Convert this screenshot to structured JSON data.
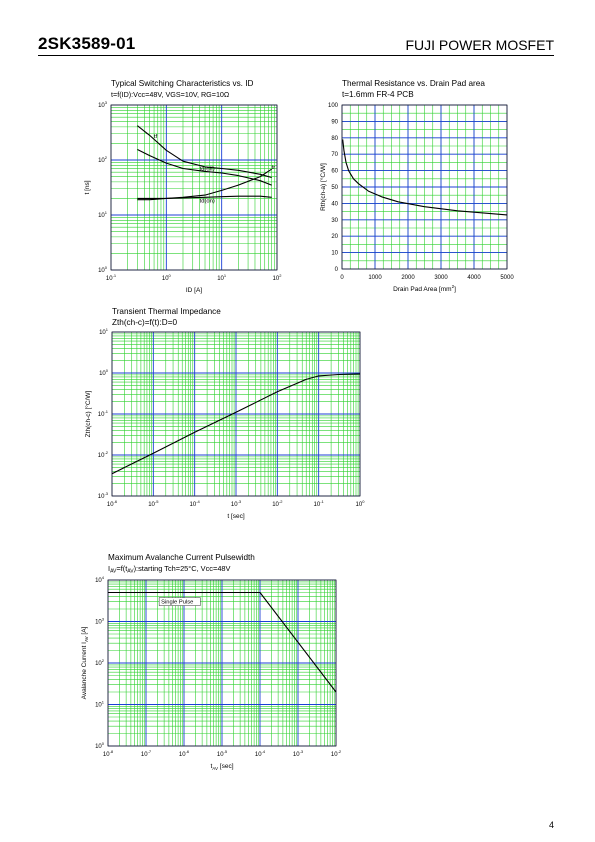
{
  "header": {
    "part_number": "2SK3589-01",
    "maker": "FUJI POWER MOSFET"
  },
  "page_number": "4",
  "colors": {
    "grid_major": "#1c3fd6",
    "grid_minor": "#2fd12f",
    "curve": "#000000"
  },
  "chart_data": [
    {
      "id": "switching",
      "type": "line",
      "title": "Typical Switching Characteristics vs. ID",
      "subtitle": "t=f(ID):Vcc=48V, VGS=10V, RG=10Ω",
      "xlabel": "ID [A]",
      "ylabel": "t [ns]",
      "xscale": "log",
      "yscale": "log",
      "xlim": [
        0.1,
        100
      ],
      "ylim": [
        1,
        1000
      ],
      "x_ticks": [
        {
          "v": 0.1,
          "b": "10",
          "e": "-1"
        },
        {
          "v": 1,
          "b": "10",
          "e": "0"
        },
        {
          "v": 10,
          "b": "10",
          "e": "1"
        },
        {
          "v": 100,
          "b": "10",
          "e": "2"
        }
      ],
      "y_ticks": [
        {
          "v": 1,
          "b": "10",
          "e": "0"
        },
        {
          "v": 10,
          "b": "10",
          "e": "1"
        },
        {
          "v": 100,
          "b": "10",
          "e": "2"
        },
        {
          "v": 1000,
          "b": "10",
          "e": "3"
        }
      ],
      "series": [
        {
          "name": "tf",
          "x": [
            0.3,
            0.5,
            1,
            2,
            5,
            10,
            20,
            50,
            80
          ],
          "y": [
            420,
            280,
            150,
            95,
            75,
            70,
            65,
            55,
            48
          ]
        },
        {
          "name": "td(off)",
          "x": [
            0.3,
            0.5,
            1,
            2,
            5,
            10,
            20,
            50,
            80
          ],
          "y": [
            155,
            120,
            88,
            70,
            62,
            58,
            52,
            42,
            35
          ]
        },
        {
          "name": "tr",
          "x": [
            0.3,
            0.5,
            1,
            2,
            5,
            10,
            20,
            50,
            80
          ],
          "y": [
            19,
            19,
            20,
            21,
            23,
            28,
            35,
            50,
            68
          ]
        },
        {
          "name": "td(on)",
          "x": [
            0.3,
            0.5,
            1,
            2,
            5,
            10,
            20,
            50,
            80
          ],
          "y": [
            20,
            20,
            20,
            20.5,
            21,
            21.5,
            22,
            22,
            21
          ]
        }
      ],
      "labels": [
        {
          "text": "tf",
          "x": 0.6,
          "y": 250
        },
        {
          "text": "td(off)",
          "x": 4,
          "y": 65
        },
        {
          "text": "tr",
          "x": 80,
          "y": 68
        },
        {
          "text": "td(on)",
          "x": 4,
          "y": 17
        }
      ]
    },
    {
      "id": "thermal_pad",
      "type": "line",
      "title": "Thermal Resistance vs. Drain Pad area",
      "subtitle": "t=1.6mm FR-4 PCB",
      "xlabel": "Drain Pad Area [mm",
      "xlabel_sup": "2",
      "xlabel_end": "]",
      "ylabel": "Rth(ch-a) [°C/W]",
      "xscale": "linear",
      "yscale": "linear",
      "xlim": [
        0,
        5000
      ],
      "ylim": [
        0,
        100
      ],
      "x_ticks": [
        {
          "v": 0,
          "b": "0"
        },
        {
          "v": 1000,
          "b": "1000"
        },
        {
          "v": 2000,
          "b": "2000"
        },
        {
          "v": 3000,
          "b": "3000"
        },
        {
          "v": 4000,
          "b": "4000"
        },
        {
          "v": 5000,
          "b": "5000"
        }
      ],
      "y_ticks": [
        {
          "v": 0,
          "b": "0"
        },
        {
          "v": 10,
          "b": "10"
        },
        {
          "v": 20,
          "b": "20"
        },
        {
          "v": 30,
          "b": "30"
        },
        {
          "v": 40,
          "b": "40"
        },
        {
          "v": 50,
          "b": "50"
        },
        {
          "v": 60,
          "b": "60"
        },
        {
          "v": 70,
          "b": "70"
        },
        {
          "v": 80,
          "b": "80"
        },
        {
          "v": 90,
          "b": "90"
        },
        {
          "v": 100,
          "b": "100"
        }
      ],
      "series": [
        {
          "name": "",
          "x": [
            20,
            60,
            120,
            200,
            350,
            500,
            800,
            1200,
            1700,
            2500,
            3500,
            5000
          ],
          "y": [
            79,
            72,
            65,
            60,
            55,
            52,
            47.5,
            44,
            41,
            38,
            35.5,
            33
          ]
        }
      ],
      "labels": []
    },
    {
      "id": "transient",
      "type": "line",
      "title": "Transient Thermal Impedance",
      "subtitle": "Zth(ch-c)=f(t):D=0",
      "xlabel": "t [sec]",
      "ylabel": "Zth(ch-c) [°C/W]",
      "xscale": "log",
      "yscale": "log",
      "xlim": [
        1e-06,
        1
      ],
      "ylim": [
        0.001,
        10
      ],
      "x_ticks": [
        {
          "v": 1e-06,
          "b": "10",
          "e": "-6"
        },
        {
          "v": 1e-05,
          "b": "10",
          "e": "-5"
        },
        {
          "v": 0.0001,
          "b": "10",
          "e": "-4"
        },
        {
          "v": 0.001,
          "b": "10",
          "e": "-3"
        },
        {
          "v": 0.01,
          "b": "10",
          "e": "-2"
        },
        {
          "v": 0.1,
          "b": "10",
          "e": "-1"
        },
        {
          "v": 1,
          "b": "10",
          "e": "0"
        }
      ],
      "y_ticks": [
        {
          "v": 0.001,
          "b": "10",
          "e": "-3"
        },
        {
          "v": 0.01,
          "b": "10",
          "e": "-2"
        },
        {
          "v": 0.1,
          "b": "10",
          "e": "-1"
        },
        {
          "v": 1,
          "b": "10",
          "e": "0"
        },
        {
          "v": 10,
          "b": "10",
          "e": "1"
        }
      ],
      "series": [
        {
          "name": "",
          "x": [
            1e-06,
            1e-05,
            0.0001,
            0.001,
            0.01,
            0.05,
            0.1,
            0.3,
            1
          ],
          "y": [
            0.0035,
            0.011,
            0.036,
            0.11,
            0.35,
            0.7,
            0.85,
            0.92,
            0.95
          ]
        }
      ],
      "labels": []
    },
    {
      "id": "avalanche",
      "type": "line",
      "title": "Maximum Avalanche Current Pulsewidth",
      "subtitle_parts": [
        "I",
        "AV",
        "=f(t",
        "AV",
        "):starting Tch=25°C, Vcc=48V"
      ],
      "xlabel": "t",
      "xlabel_sub": "AV",
      "xlabel_end": " [sec]",
      "ylabel": "Avalanche Current I",
      "ylabel_sub": "AV",
      "ylabel_end": " [A]",
      "xscale": "log",
      "yscale": "log",
      "xlim": [
        1e-08,
        0.01
      ],
      "ylim": [
        1,
        10000
      ],
      "x_ticks": [
        {
          "v": 1e-08,
          "b": "10",
          "e": "-8"
        },
        {
          "v": 1e-07,
          "b": "10",
          "e": "-7"
        },
        {
          "v": 1e-06,
          "b": "10",
          "e": "-6"
        },
        {
          "v": 1e-05,
          "b": "10",
          "e": "-5"
        },
        {
          "v": 0.0001,
          "b": "10",
          "e": "-4"
        },
        {
          "v": 0.001,
          "b": "10",
          "e": "-3"
        },
        {
          "v": 0.01,
          "b": "10",
          "e": "-2"
        }
      ],
      "y_ticks": [
        {
          "v": 1,
          "b": "10",
          "e": "0"
        },
        {
          "v": 10,
          "b": "10",
          "e": "1"
        },
        {
          "v": 100,
          "b": "10",
          "e": "2"
        },
        {
          "v": 1000,
          "b": "10",
          "e": "3"
        },
        {
          "v": 10000,
          "b": "10",
          "e": "4"
        }
      ],
      "series": [
        {
          "name": "Single Pulse",
          "x": [
            1e-08,
            0.0001,
            0.01
          ],
          "y": [
            5000,
            5000,
            20
          ]
        }
      ],
      "labels": [
        {
          "text": "Single Pulse",
          "x": 2.5e-07,
          "y": 2700,
          "boxed": true
        }
      ]
    }
  ]
}
